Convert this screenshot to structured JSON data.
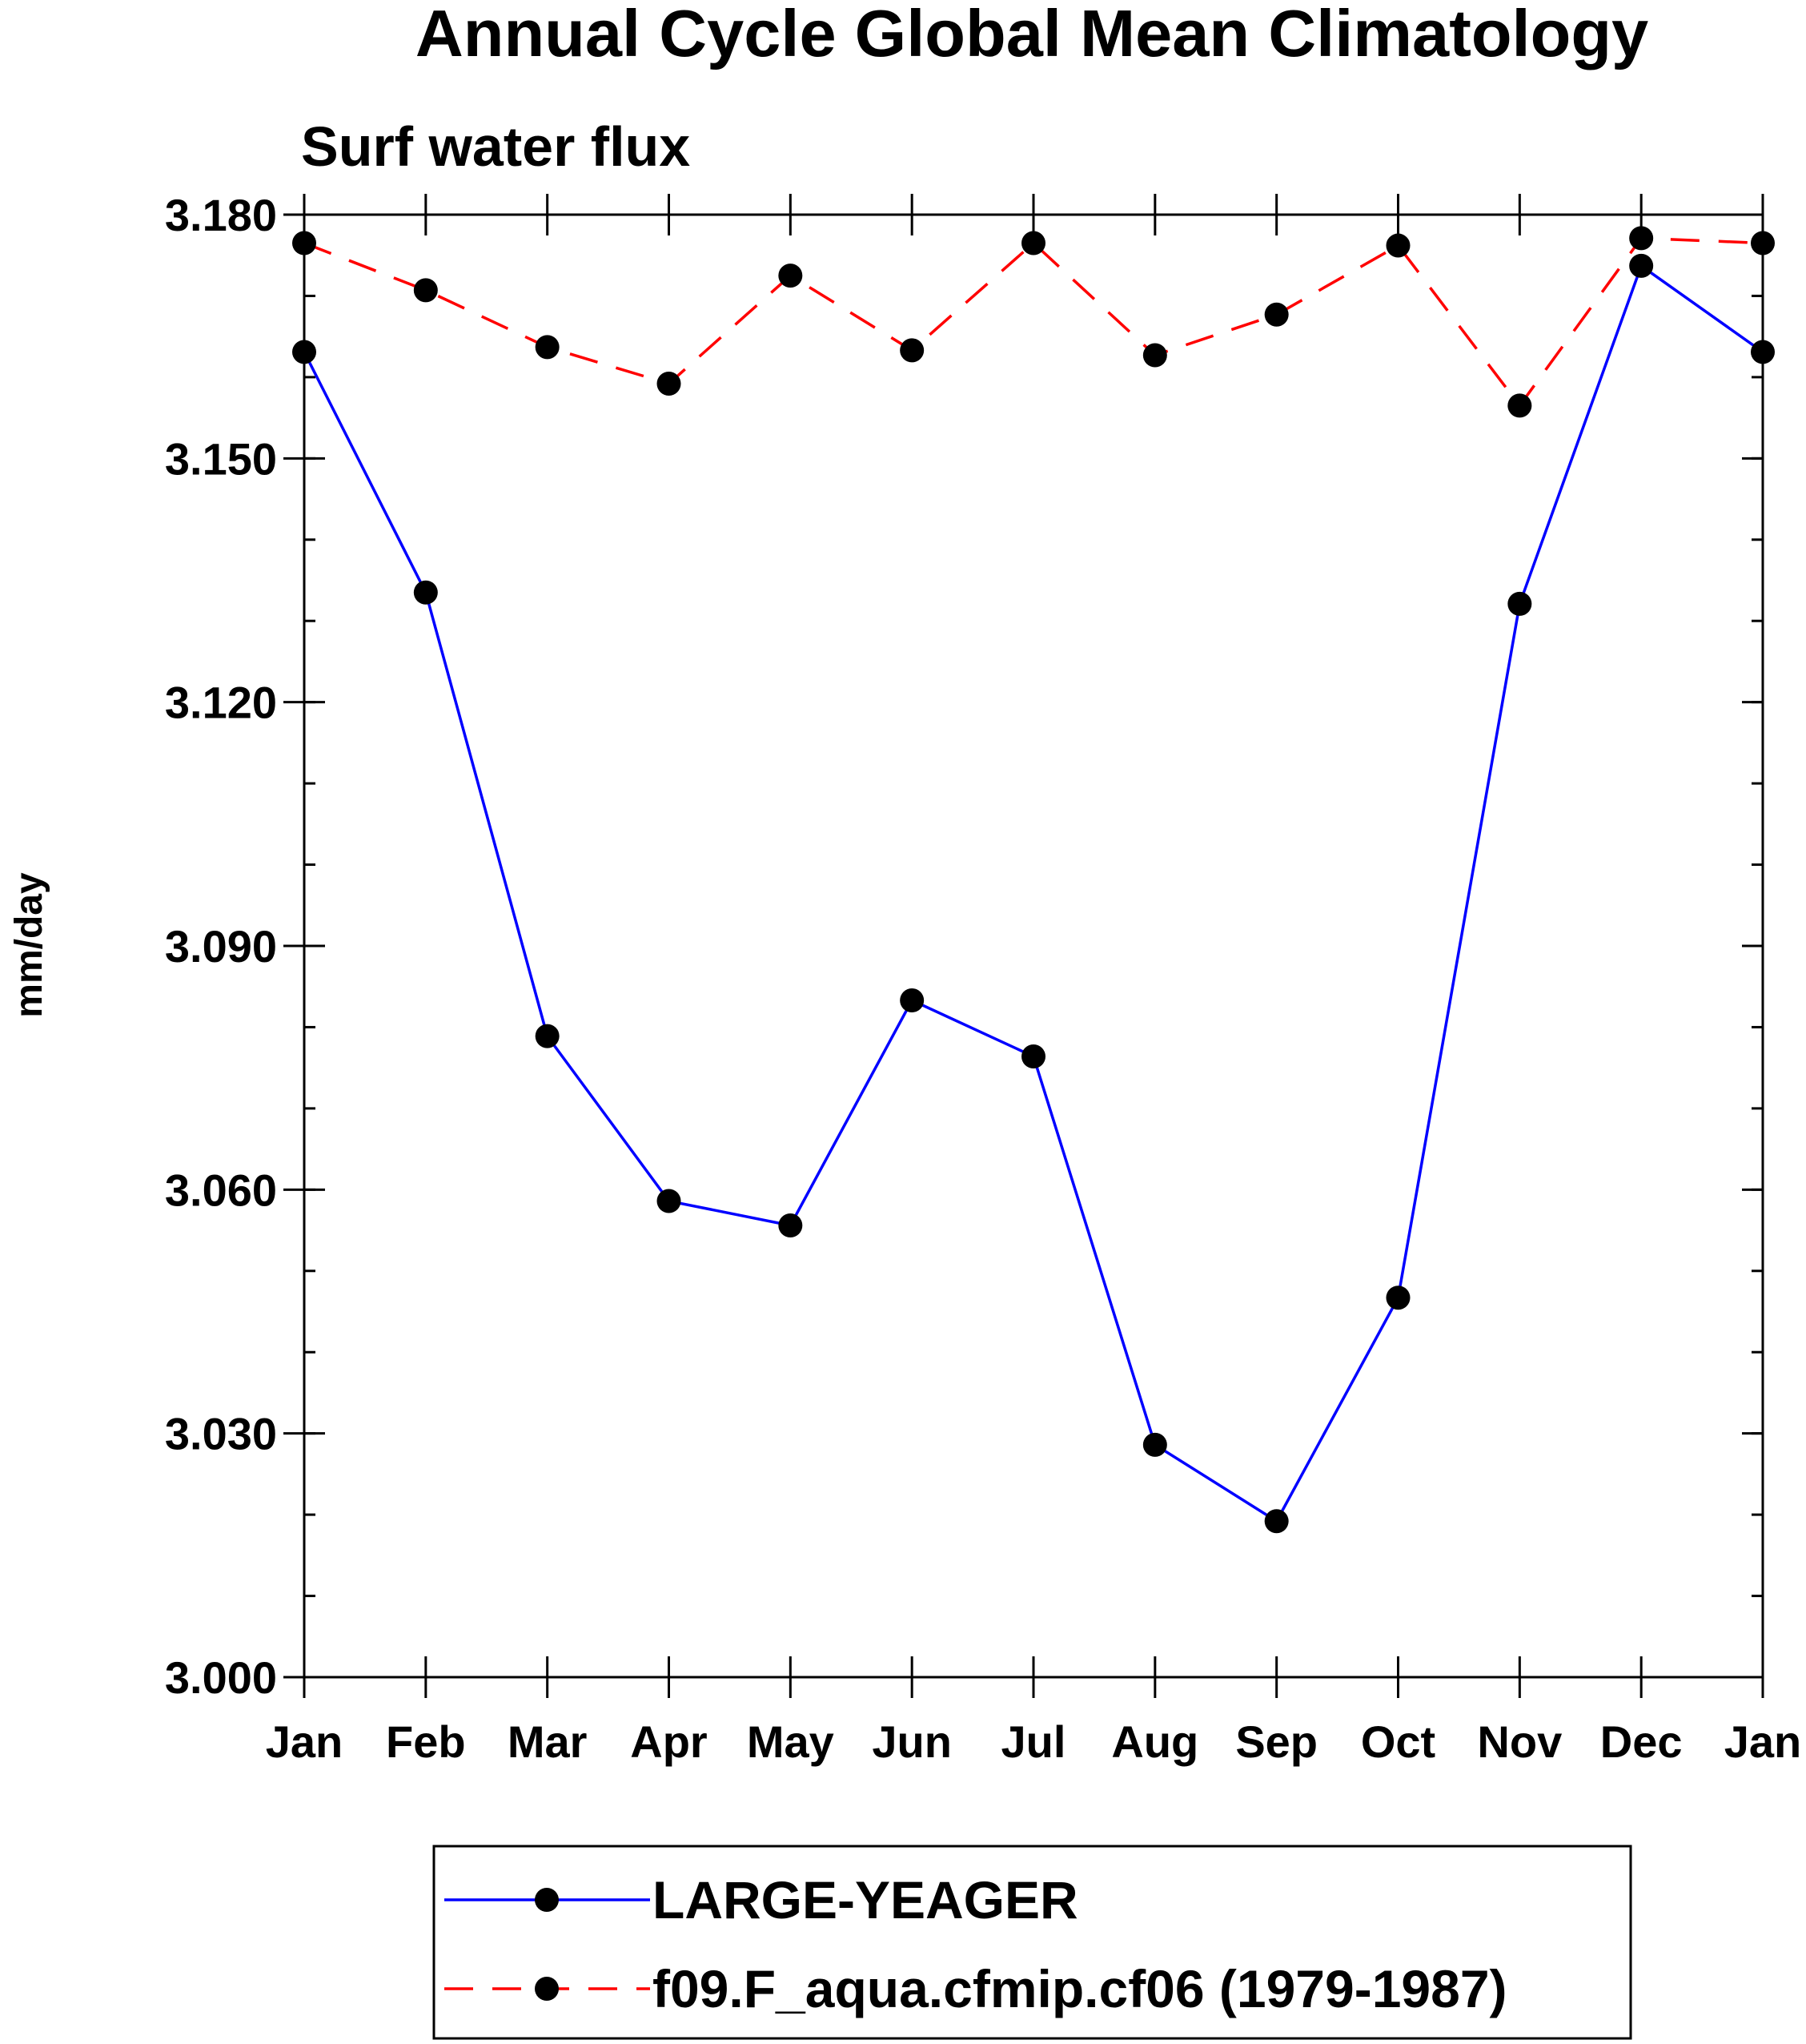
{
  "chart_data": {
    "type": "line",
    "title": "Annual Cycle Global Mean Climatology",
    "subtitle": "Surf water flux",
    "xlabel": "",
    "ylabel": "mm/day",
    "categories": [
      "Jan",
      "Feb",
      "Mar",
      "Apr",
      "May",
      "Jun",
      "Jul",
      "Aug",
      "Sep",
      "Oct",
      "Nov",
      "Dec",
      "Jan"
    ],
    "ylim": [
      3.0,
      3.18
    ],
    "yticks": [
      3.0,
      3.03,
      3.06,
      3.09,
      3.12,
      3.15,
      3.18
    ],
    "ytick_labels": [
      "3.000",
      "3.030",
      "3.060",
      "3.090",
      "3.120",
      "3.150",
      "3.180"
    ],
    "y_minor_step": 0.01,
    "grid": false,
    "legend_position": "bottom-center",
    "series": [
      {
        "name": "LARGE-YEAGER",
        "color": "#0000ff",
        "dash": "solid",
        "marker": "filled-circle",
        "values": [
          3.1631,
          3.1335,
          3.0789,
          3.0586,
          3.0556,
          3.0833,
          3.0764,
          3.0286,
          3.0192,
          3.0467,
          3.1321,
          3.1737,
          3.1631
        ]
      },
      {
        "name": "f09.F_aqua.cfmip.cf06 (1979-1987)",
        "color": "#ff0000",
        "dash": "dashed",
        "marker": "filled-circle",
        "values": [
          3.1765,
          3.1707,
          3.1637,
          3.1592,
          3.1725,
          3.1633,
          3.1765,
          3.1627,
          3.1677,
          3.1762,
          3.1565,
          3.1771,
          3.1765
        ]
      }
    ]
  }
}
